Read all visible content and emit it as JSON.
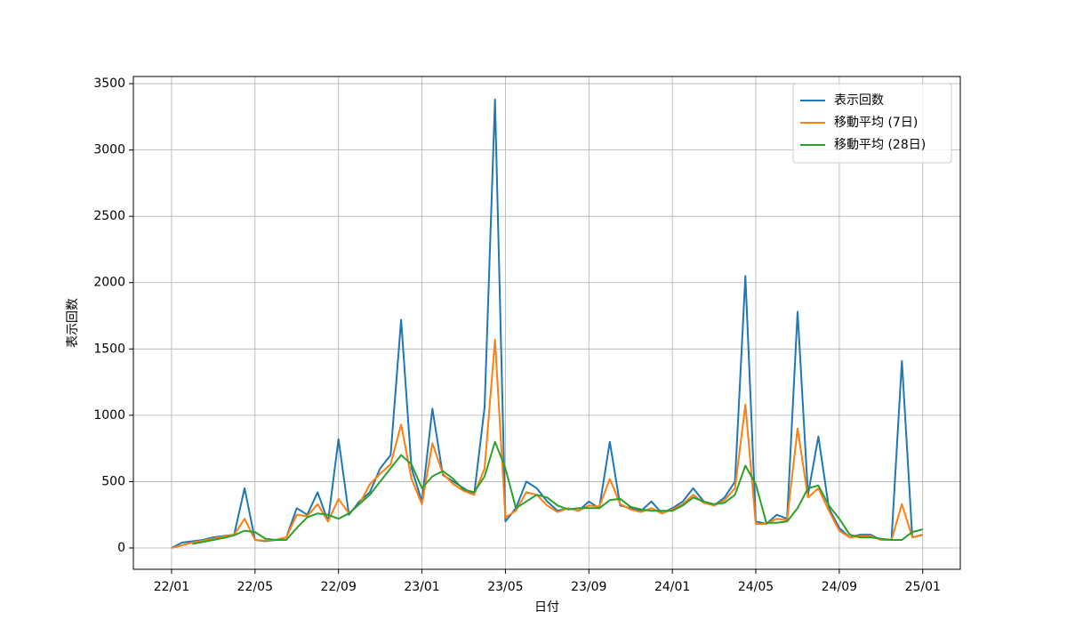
{
  "chart_data": {
    "type": "line",
    "xlabel": "日付",
    "ylabel": "表示回数",
    "x": [
      0,
      0.5,
      1,
      1.5,
      2,
      2.5,
      3,
      3.5,
      4,
      4.5,
      5,
      5.5,
      6,
      6.5,
      7,
      7.5,
      8,
      8.5,
      9,
      9.5,
      10,
      10.5,
      11,
      11.5,
      12,
      12.5,
      13,
      13.5,
      14,
      14.5,
      15,
      15.5,
      16,
      16.5,
      17,
      17.5,
      18,
      18.5,
      19,
      19.5,
      20,
      20.5,
      21,
      21.5,
      22,
      22.5,
      23,
      23.5,
      24,
      24.5,
      25,
      25.5,
      26,
      26.5,
      27,
      27.5,
      28,
      28.5,
      29,
      29.5,
      30,
      30.5,
      31,
      31.5,
      32,
      32.5,
      33,
      33.5,
      34,
      34.5,
      35,
      35.5,
      36
    ],
    "series": [
      {
        "name": "表示回数",
        "color": "#1f77b4",
        "values": [
          0,
          40,
          50,
          60,
          80,
          90,
          100,
          450,
          60,
          50,
          60,
          80,
          300,
          250,
          420,
          200,
          820,
          250,
          350,
          420,
          600,
          700,
          1720,
          600,
          350,
          1050,
          550,
          500,
          450,
          400,
          1060,
          3380,
          200,
          300,
          500,
          450,
          350,
          280,
          300,
          280,
          350,
          300,
          800,
          320,
          300,
          280,
          350,
          260,
          300,
          350,
          450,
          350,
          320,
          380,
          500,
          2050,
          200,
          180,
          250,
          220,
          1780,
          400,
          840,
          300,
          150,
          80,
          100,
          100,
          60,
          60,
          1410,
          80,
          100
        ]
      },
      {
        "name": "移動平均 (7日)",
        "color": "#ff7f0e",
        "values": [
          0,
          20,
          40,
          55,
          70,
          85,
          100,
          220,
          60,
          55,
          60,
          80,
          250,
          240,
          330,
          200,
          370,
          260,
          330,
          480,
          560,
          630,
          930,
          520,
          330,
          790,
          560,
          480,
          430,
          400,
          600,
          1570,
          230,
          280,
          420,
          400,
          320,
          270,
          300,
          280,
          320,
          310,
          520,
          330,
          290,
          270,
          300,
          260,
          290,
          330,
          400,
          340,
          320,
          360,
          450,
          1080,
          180,
          180,
          220,
          210,
          900,
          380,
          450,
          280,
          130,
          80,
          90,
          90,
          60,
          60,
          330,
          80,
          100
        ]
      },
      {
        "name": "移動平均 (28日)",
        "color": "#2ca02c",
        "values": [
          null,
          null,
          30,
          45,
          60,
          75,
          95,
          130,
          120,
          70,
          60,
          60,
          150,
          230,
          260,
          250,
          220,
          260,
          330,
          400,
          500,
          600,
          700,
          630,
          450,
          540,
          580,
          520,
          440,
          420,
          540,
          800,
          600,
          300,
          350,
          400,
          380,
          320,
          290,
          300,
          300,
          300,
          360,
          370,
          310,
          290,
          280,
          280,
          280,
          320,
          380,
          350,
          330,
          340,
          400,
          620,
          480,
          190,
          190,
          200,
          300,
          450,
          470,
          320,
          220,
          100,
          80,
          80,
          70,
          60,
          60,
          120,
          140
        ]
      }
    ],
    "xlim": [
      -1.83,
      37.8
    ],
    "ylim": [
      -161,
      3554
    ],
    "xticks": [
      {
        "value": 0,
        "label": "22/01"
      },
      {
        "value": 4,
        "label": "22/05"
      },
      {
        "value": 8,
        "label": "22/09"
      },
      {
        "value": 12,
        "label": "23/01"
      },
      {
        "value": 16,
        "label": "23/05"
      },
      {
        "value": 20,
        "label": "23/09"
      },
      {
        "value": 24,
        "label": "24/01"
      },
      {
        "value": 28,
        "label": "24/05"
      },
      {
        "value": 32,
        "label": "24/09"
      },
      {
        "value": 36,
        "label": "25/01"
      }
    ],
    "yticks": [
      0,
      500,
      1000,
      1500,
      2000,
      2500,
      3000,
      3500
    ],
    "grid": true,
    "legend": "upper right"
  }
}
